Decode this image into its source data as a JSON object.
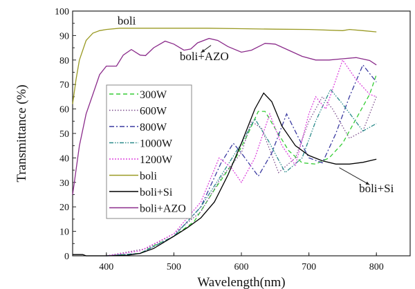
{
  "chart_data": {
    "type": "line",
    "title": "",
    "xlabel": "Wavelength(nm)",
    "ylabel": "Transmittance (%)",
    "xlim": [
      350,
      850
    ],
    "ylim": [
      0,
      100
    ],
    "xticks": [
      400,
      500,
      600,
      700,
      800
    ],
    "yticks": [
      0,
      10,
      20,
      30,
      40,
      50,
      60,
      70,
      80,
      90,
      100
    ],
    "grid": false,
    "legend_position": "center-left",
    "series": [
      {
        "name": "300W",
        "color": "#33cc33",
        "dash": "dash",
        "x": [
          400,
          450,
          470,
          500,
          530,
          560,
          590,
          610,
          625,
          635,
          650,
          670,
          690,
          710,
          730,
          750,
          770,
          790,
          800
        ],
        "y": [
          0,
          1,
          4,
          8,
          14,
          27,
          39,
          50,
          59,
          59,
          52,
          43,
          38,
          37.5,
          40,
          46,
          56,
          66,
          74
        ]
      },
      {
        "name": "600W",
        "color": "#7a4a8a",
        "dash": "dot",
        "x": [
          400,
          460,
          500,
          540,
          570,
          600,
          615,
          630,
          655,
          680,
          700,
          720,
          735,
          760,
          780,
          800
        ],
        "y": [
          0,
          3,
          9,
          18,
          32,
          42,
          55,
          52,
          34,
          40,
          55,
          65,
          60,
          48,
          51,
          65
        ]
      },
      {
        "name": "800W",
        "color": "#3a3aa0",
        "dash": "dashdot",
        "x": [
          400,
          450,
          500,
          540,
          570,
          588,
          600,
          625,
          645,
          667,
          685,
          700,
          720,
          740,
          760,
          780,
          800
        ],
        "y": [
          0,
          1,
          8,
          20,
          38,
          46,
          42,
          32.5,
          42,
          58,
          48,
          40,
          38,
          50,
          65,
          78,
          71
        ]
      },
      {
        "name": "1000W",
        "color": "#2a8a8a",
        "dash": "dashdotdot",
        "x": [
          400,
          450,
          500,
          540,
          575,
          600,
          620,
          640,
          665,
          690,
          710,
          732,
          750,
          780,
          800
        ],
        "y": [
          0,
          1,
          8,
          20,
          35,
          46,
          56,
          47,
          34,
          40,
          55,
          68,
          62,
          51,
          54
        ]
      },
      {
        "name": "1200W",
        "color": "#dd44dd",
        "dash": "shortdot",
        "x": [
          400,
          450,
          500,
          540,
          567,
          585,
          600,
          620,
          642,
          660,
          680,
          700,
          710,
          725,
          750,
          770,
          790,
          800
        ],
        "y": [
          0,
          2,
          9,
          22,
          40,
          36,
          30,
          40,
          58,
          45,
          37,
          58,
          65,
          60,
          80,
          72,
          66,
          65
        ]
      },
      {
        "name": "boli",
        "color": "#999922",
        "dash": "solid",
        "x": [
          350,
          355,
          360,
          370,
          380,
          390,
          400,
          420,
          450,
          500,
          550,
          600,
          650,
          700,
          750,
          760,
          780,
          800
        ],
        "y": [
          62,
          72,
          80,
          88,
          91,
          92,
          92.5,
          93,
          93,
          93,
          93,
          92.8,
          92.6,
          92.5,
          92,
          92.5,
          92,
          91.5
        ]
      },
      {
        "name": "boli+Si",
        "color": "#000000",
        "dash": "solid",
        "x": [
          350,
          365,
          370,
          400,
          430,
          450,
          470,
          500,
          520,
          540,
          560,
          580,
          600,
          620,
          633,
          645,
          660,
          680,
          700,
          720,
          740,
          760,
          780,
          800
        ],
        "y": [
          0.5,
          0.5,
          0,
          0,
          0.2,
          1,
          3,
          8,
          11.5,
          15.5,
          22,
          33,
          46,
          60,
          66.5,
          63,
          53,
          45,
          41,
          38.8,
          37.5,
          37.5,
          38.2,
          39.5
        ]
      },
      {
        "name": "boli+AZO",
        "color": "#8a2a8a",
        "dash": "solid",
        "x": [
          350,
          360,
          370,
          380,
          390,
          400,
          415,
          425,
          437,
          450,
          458,
          470,
          487,
          500,
          515,
          525,
          535,
          552,
          565,
          580,
          600,
          615,
          635,
          650,
          670,
          690,
          710,
          730,
          750,
          770,
          790,
          800
        ],
        "y": [
          25,
          45,
          58,
          66,
          74,
          77.5,
          77.5,
          82,
          84.3,
          82,
          81.8,
          85,
          87.7,
          86.5,
          84,
          84.5,
          87,
          88.8,
          88,
          85.5,
          83.2,
          84,
          86.8,
          86.5,
          84,
          81.5,
          80,
          80,
          80.5,
          81,
          79.8,
          78
        ]
      }
    ],
    "annotations": [
      {
        "text": "boli",
        "x": 430,
        "y": 94.5
      },
      {
        "text": "boli+AZO",
        "x": 545,
        "y": 80,
        "arrow_to": [
          540,
          83
        ]
      },
      {
        "text": "boli+Si",
        "x": 800,
        "y": 26,
        "arrow_from": [
          745,
          36
        ],
        "arrow_to": [
          790,
          29
        ]
      }
    ]
  }
}
